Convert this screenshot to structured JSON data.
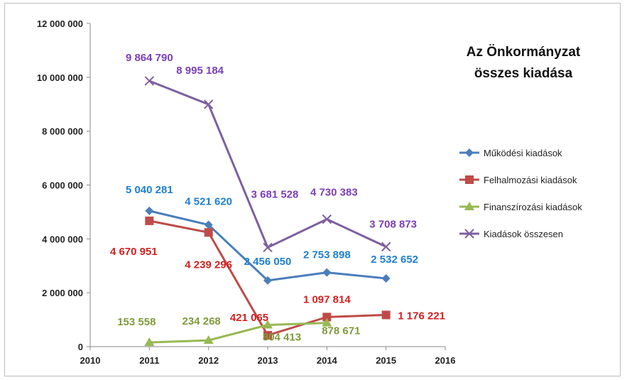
{
  "chart_data": {
    "type": "line",
    "title_lines": [
      "Az Önkormányzat",
      "összes kiadása"
    ],
    "xlabel": "",
    "ylabel": "",
    "x_ticks": [
      "2010",
      "2011",
      "2012",
      "2013",
      "2014",
      "2015",
      "2016"
    ],
    "y_ticks": [
      "0",
      "2 000 000",
      "4 000 000",
      "6 000 000",
      "8 000 000",
      "10 000 000",
      "12 000 000"
    ],
    "xlim": [
      2010,
      2016
    ],
    "ylim": [
      0,
      12000000
    ],
    "grid": false,
    "legend_position": "right",
    "x": [
      2011,
      2012,
      2013,
      2014,
      2015
    ],
    "series": [
      {
        "name": "Működési kiadások",
        "color": "#4a7ebb",
        "label_color": "#1f7fd1",
        "marker": "diamond",
        "values": [
          5040281,
          4521620,
          2456050,
          2753898,
          2532652
        ],
        "labels": [
          "5 040 281",
          "4 521 620",
          "2 456 050",
          "2 753 898",
          "2 532 652"
        ]
      },
      {
        "name": "Felhalmozási kiadások",
        "color": "#be4b48",
        "label_color": "#d42020",
        "marker": "square",
        "values": [
          4670951,
          4239296,
          421065,
          1097814,
          1176221
        ],
        "labels": [
          "4 670 951",
          "4 239 296",
          "421 065",
          "1 097 814",
          "1 176 221"
        ]
      },
      {
        "name": "Finanszírozási kiadások",
        "color": "#98b954",
        "label_color": "#7f9a3a",
        "marker": "triangle",
        "values": [
          153558,
          234268,
          804413,
          878671,
          null
        ],
        "labels": [
          "153 558",
          "234 268",
          "804 413",
          "878 671",
          ""
        ]
      },
      {
        "name": "Kiadások összesen",
        "color": "#7d60a0",
        "label_color": "#7a3fb8",
        "marker": "x",
        "values": [
          9864790,
          8995184,
          3681528,
          4730383,
          3708873
        ],
        "labels": [
          "9 864 790",
          "8 995 184",
          "3 681 528",
          "4 730 383",
          "3 708 873"
        ]
      }
    ]
  }
}
